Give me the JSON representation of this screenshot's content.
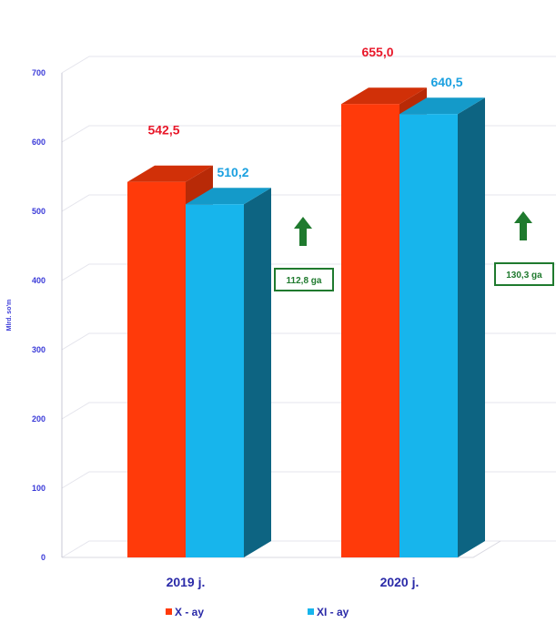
{
  "chart_data": {
    "type": "bar",
    "title": "",
    "xlabel": "",
    "ylabel": "Mlrd. so'm",
    "ylim": [
      0,
      700
    ],
    "yticks": [
      0,
      100,
      200,
      300,
      400,
      500,
      600,
      700
    ],
    "categories": [
      "2019 j.",
      "2020 j."
    ],
    "series": [
      {
        "name": "X - ay",
        "values": [
          542.5,
          655.0
        ],
        "labels": [
          "542,5",
          "655,0"
        ],
        "color": "#ff3a0a",
        "label_color": "#e8182a"
      },
      {
        "name": "XI - ay",
        "values": [
          510.2,
          640.5
        ],
        "labels": [
          "510,2",
          "640,5"
        ],
        "color": "#17b5ec",
        "label_color": "#1aa0e0"
      }
    ],
    "annotations": [
      {
        "category": "2019 j.",
        "text": "112,8 ga",
        "arrow": "up",
        "color": "#1f7a2e"
      },
      {
        "category": "2020 j.",
        "text": "130,3 ga",
        "arrow": "up",
        "color": "#1f7a2e"
      }
    ],
    "grid": true,
    "legend": "bottom"
  }
}
